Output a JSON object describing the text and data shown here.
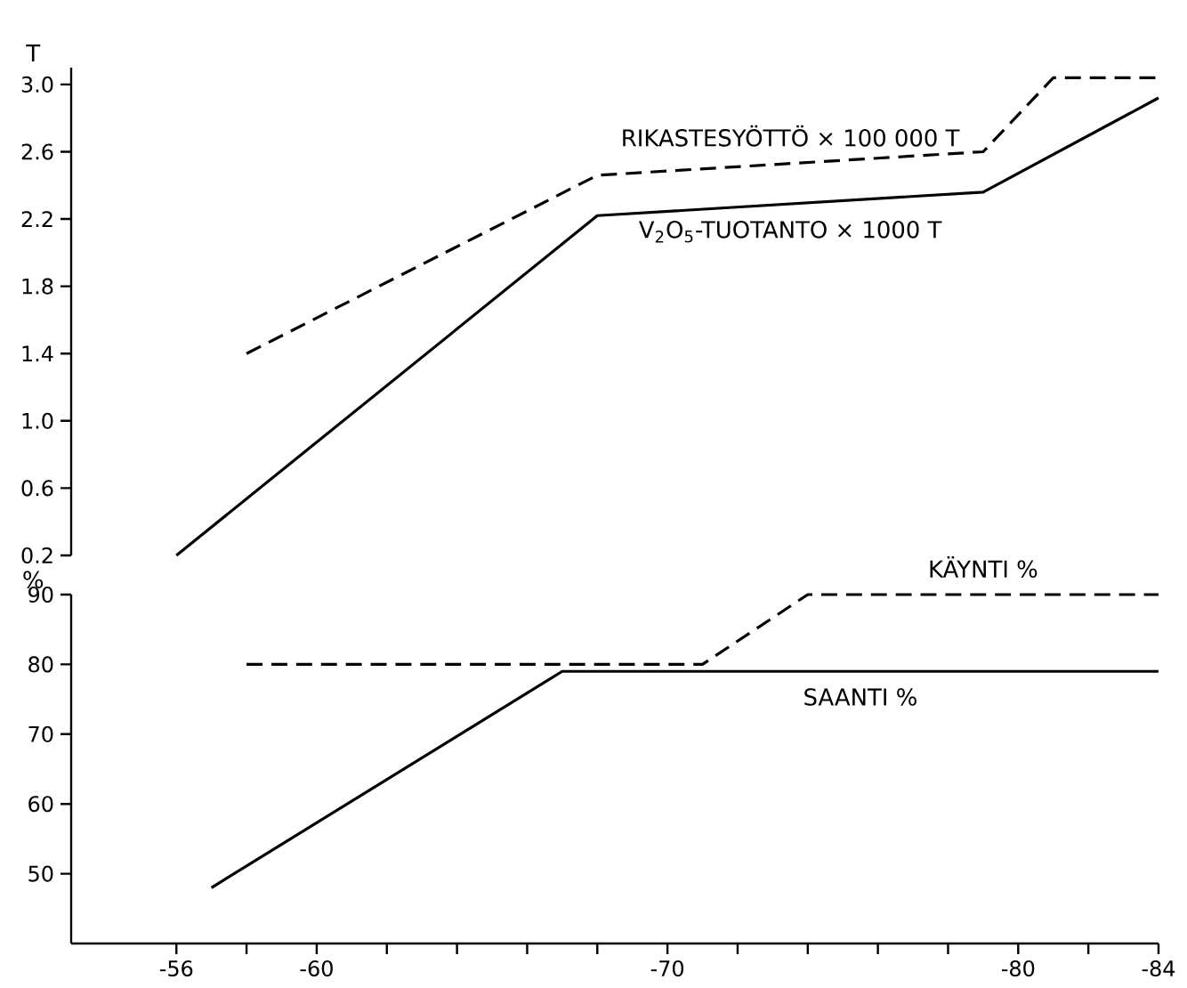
{
  "chart_data": [
    {
      "type": "line",
      "ylabel": "T",
      "xlim": [
        -53,
        -84
      ],
      "ylim": [
        0.2,
        3.1
      ],
      "yticks": [
        0.2,
        0.6,
        {
          "value": 1.0,
          "label": "1.0"
        },
        1.4,
        1.8,
        2.2,
        2.6,
        {
          "value": 3.0,
          "label": "3.0"
        }
      ],
      "tick_labels": "y",
      "marker": "none",
      "series": [
        {
          "name": "RIKASTESYÖTTÖ × 100 000 T",
          "color": "#000000",
          "line_style": "dashed",
          "x": [
            -58,
            -68,
            -79,
            -81,
            -84
          ],
          "values": [
            1.4,
            2.46,
            2.6,
            3.04,
            3.04
          ]
        },
        {
          "name": "V$_{2}$O$_{5}$-TUOTANTO × 1000 T",
          "color": "#000000",
          "line_style": "solid",
          "x": [
            -56,
            -68,
            -79,
            -84
          ],
          "values": [
            0.2,
            2.22,
            2.36,
            2.92
          ]
        }
      ]
    },
    {
      "type": "line",
      "ylabel": "%",
      "xlim": [
        -53,
        -84
      ],
      "ylim": [
        40,
        90
      ],
      "yticks": [
        50,
        60,
        70,
        80,
        90
      ],
      "marker": "none",
      "xticks": [
        -56,
        {
          "value": -58,
          "label": null
        },
        -60,
        {
          "value": -62,
          "label": null
        },
        {
          "value": -64,
          "label": null
        },
        {
          "value": -66,
          "label": null
        },
        {
          "value": -68,
          "label": null
        },
        -70,
        {
          "value": -72,
          "label": null
        },
        {
          "value": -74,
          "label": null
        },
        {
          "value": -76,
          "label": null
        },
        {
          "value": -78,
          "label": null
        },
        -80,
        {
          "value": -82,
          "label": null
        },
        -84
      ],
      "series": [
        {
          "name": "KÄYNTI %",
          "color": "#000000",
          "line_style": "dashed",
          "x": [
            -58,
            -71,
            -74,
            -84
          ],
          "values": [
            80,
            80,
            90,
            90
          ]
        },
        {
          "name": "SAANTI %",
          "color": "#000000",
          "line_style": "solid",
          "x": [
            -57,
            -67,
            -84
          ],
          "values": [
            48,
            79,
            79
          ]
        }
      ]
    }
  ]
}
